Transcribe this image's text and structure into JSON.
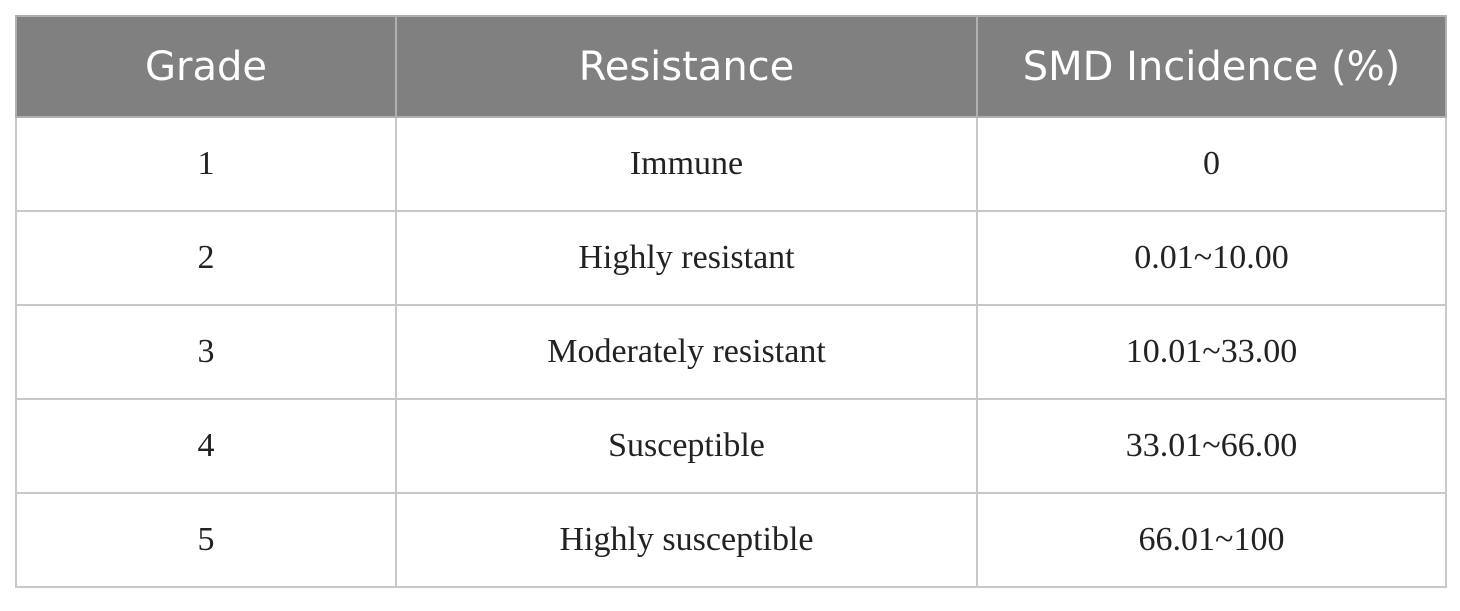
{
  "table": {
    "header": [
      "Grade",
      "Resistance",
      "SMD Incidence (%)"
    ],
    "rows": [
      [
        "1",
        "Immune",
        "0"
      ],
      [
        "2",
        "Highly resistant",
        "0.01~10.00"
      ],
      [
        "3",
        "Moderately resistant",
        "10.01~33.00"
      ],
      [
        "4",
        "Susceptible",
        "33.01~66.00"
      ],
      [
        "5",
        "Highly susceptible",
        "66.01~100"
      ]
    ]
  }
}
